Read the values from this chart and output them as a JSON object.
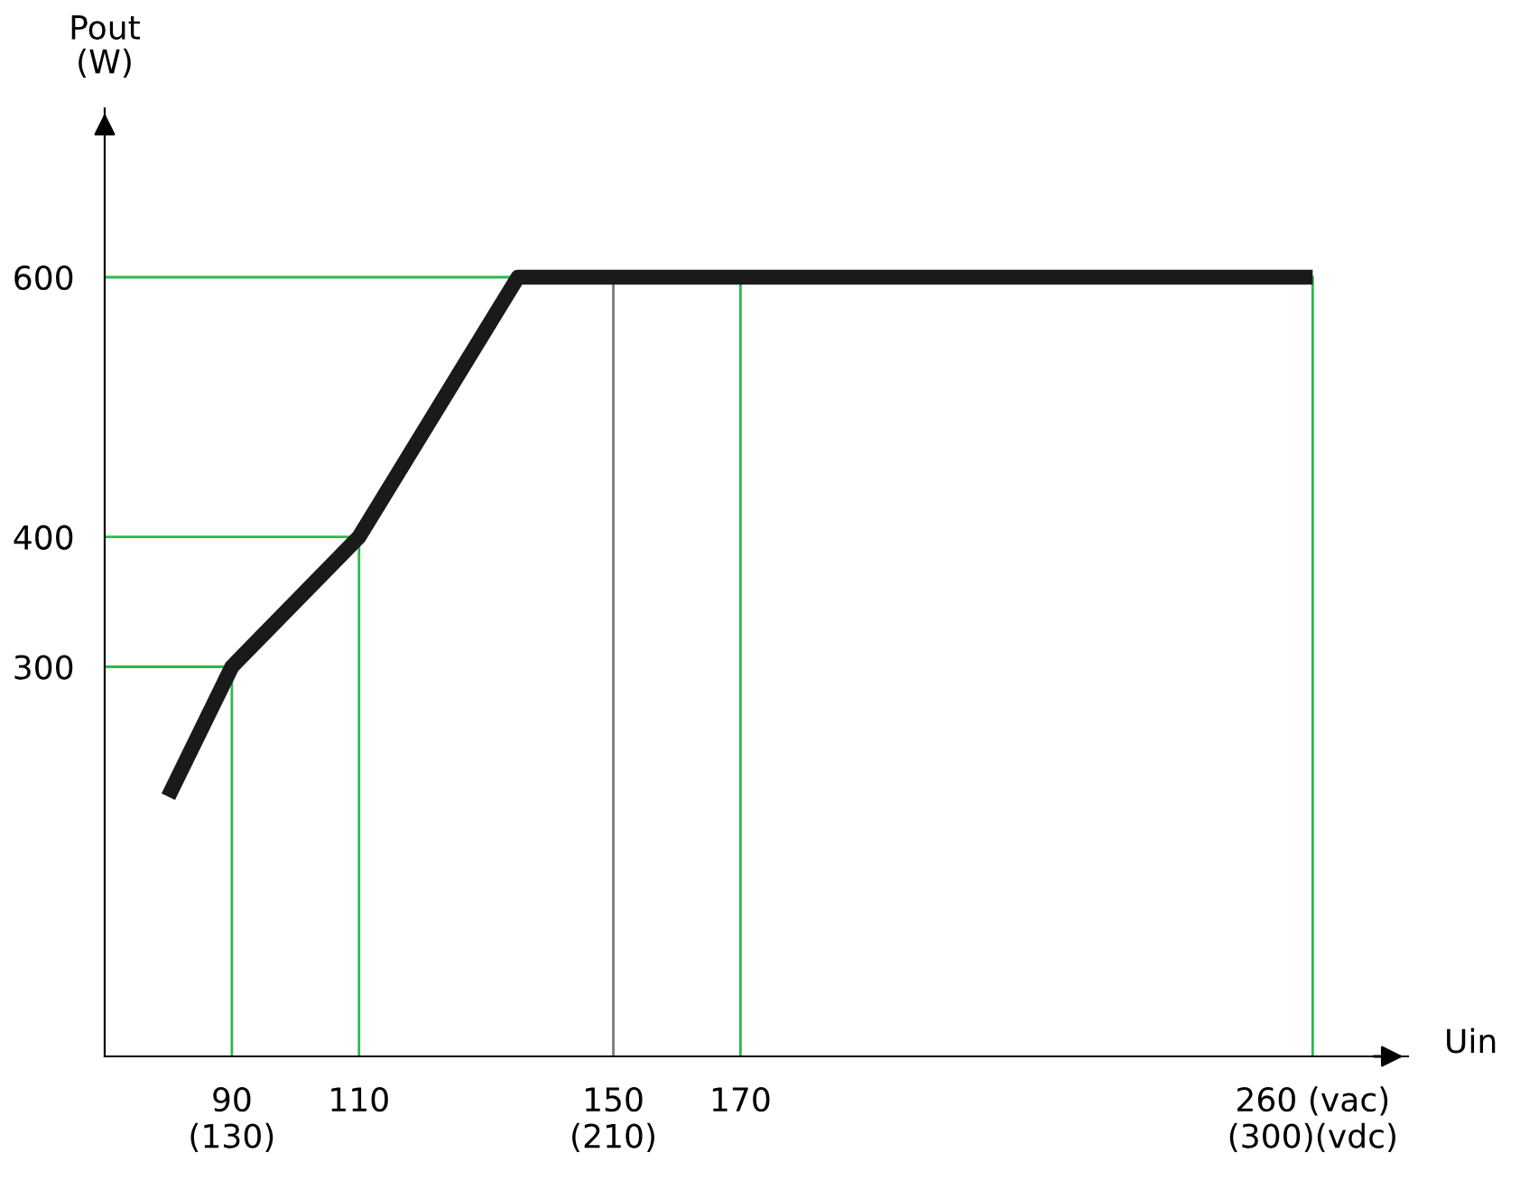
{
  "chart_data": {
    "type": "line",
    "xlabel": "Uin",
    "ylabel": "Pout\n(W)",
    "x": [
      80,
      90,
      110,
      135,
      260
    ],
    "series": [
      {
        "color": "#1a1a1a",
        "values": [
          200,
          300,
          400,
          600,
          600
        ]
      }
    ],
    "xlim": [
      70,
      275
    ],
    "ylim": [
      0,
      730
    ],
    "xticks": [
      {
        "value": 90,
        "label": "90\n(130)"
      },
      110,
      {
        "value": 150,
        "label": "150\n(210)"
      },
      170,
      {
        "value": 260,
        "label": "260 (vac)\n(300)(vdc)"
      }
    ],
    "yticks": [
      300,
      400,
      600
    ],
    "ref_lines": [
      {
        "axis": "x",
        "value": 90,
        "color": "#2db84d"
      },
      {
        "axis": "x",
        "value": 110,
        "color": "#2db84d"
      },
      {
        "axis": "x",
        "value": 150,
        "color": "#7a7a7a"
      },
      {
        "axis": "x",
        "value": 170,
        "color": "#2db84d"
      },
      {
        "axis": "x",
        "value": 260,
        "color": "#2db84d"
      },
      {
        "axis": "y",
        "value": 300,
        "color": "#2db84d"
      },
      {
        "axis": "y",
        "value": 400,
        "color": "#2db84d"
      },
      {
        "axis": "y",
        "value": 600,
        "color": "#2db84d"
      }
    ],
    "grid": false,
    "legend": false,
    "marker": "none",
    "line_style": "solid"
  }
}
